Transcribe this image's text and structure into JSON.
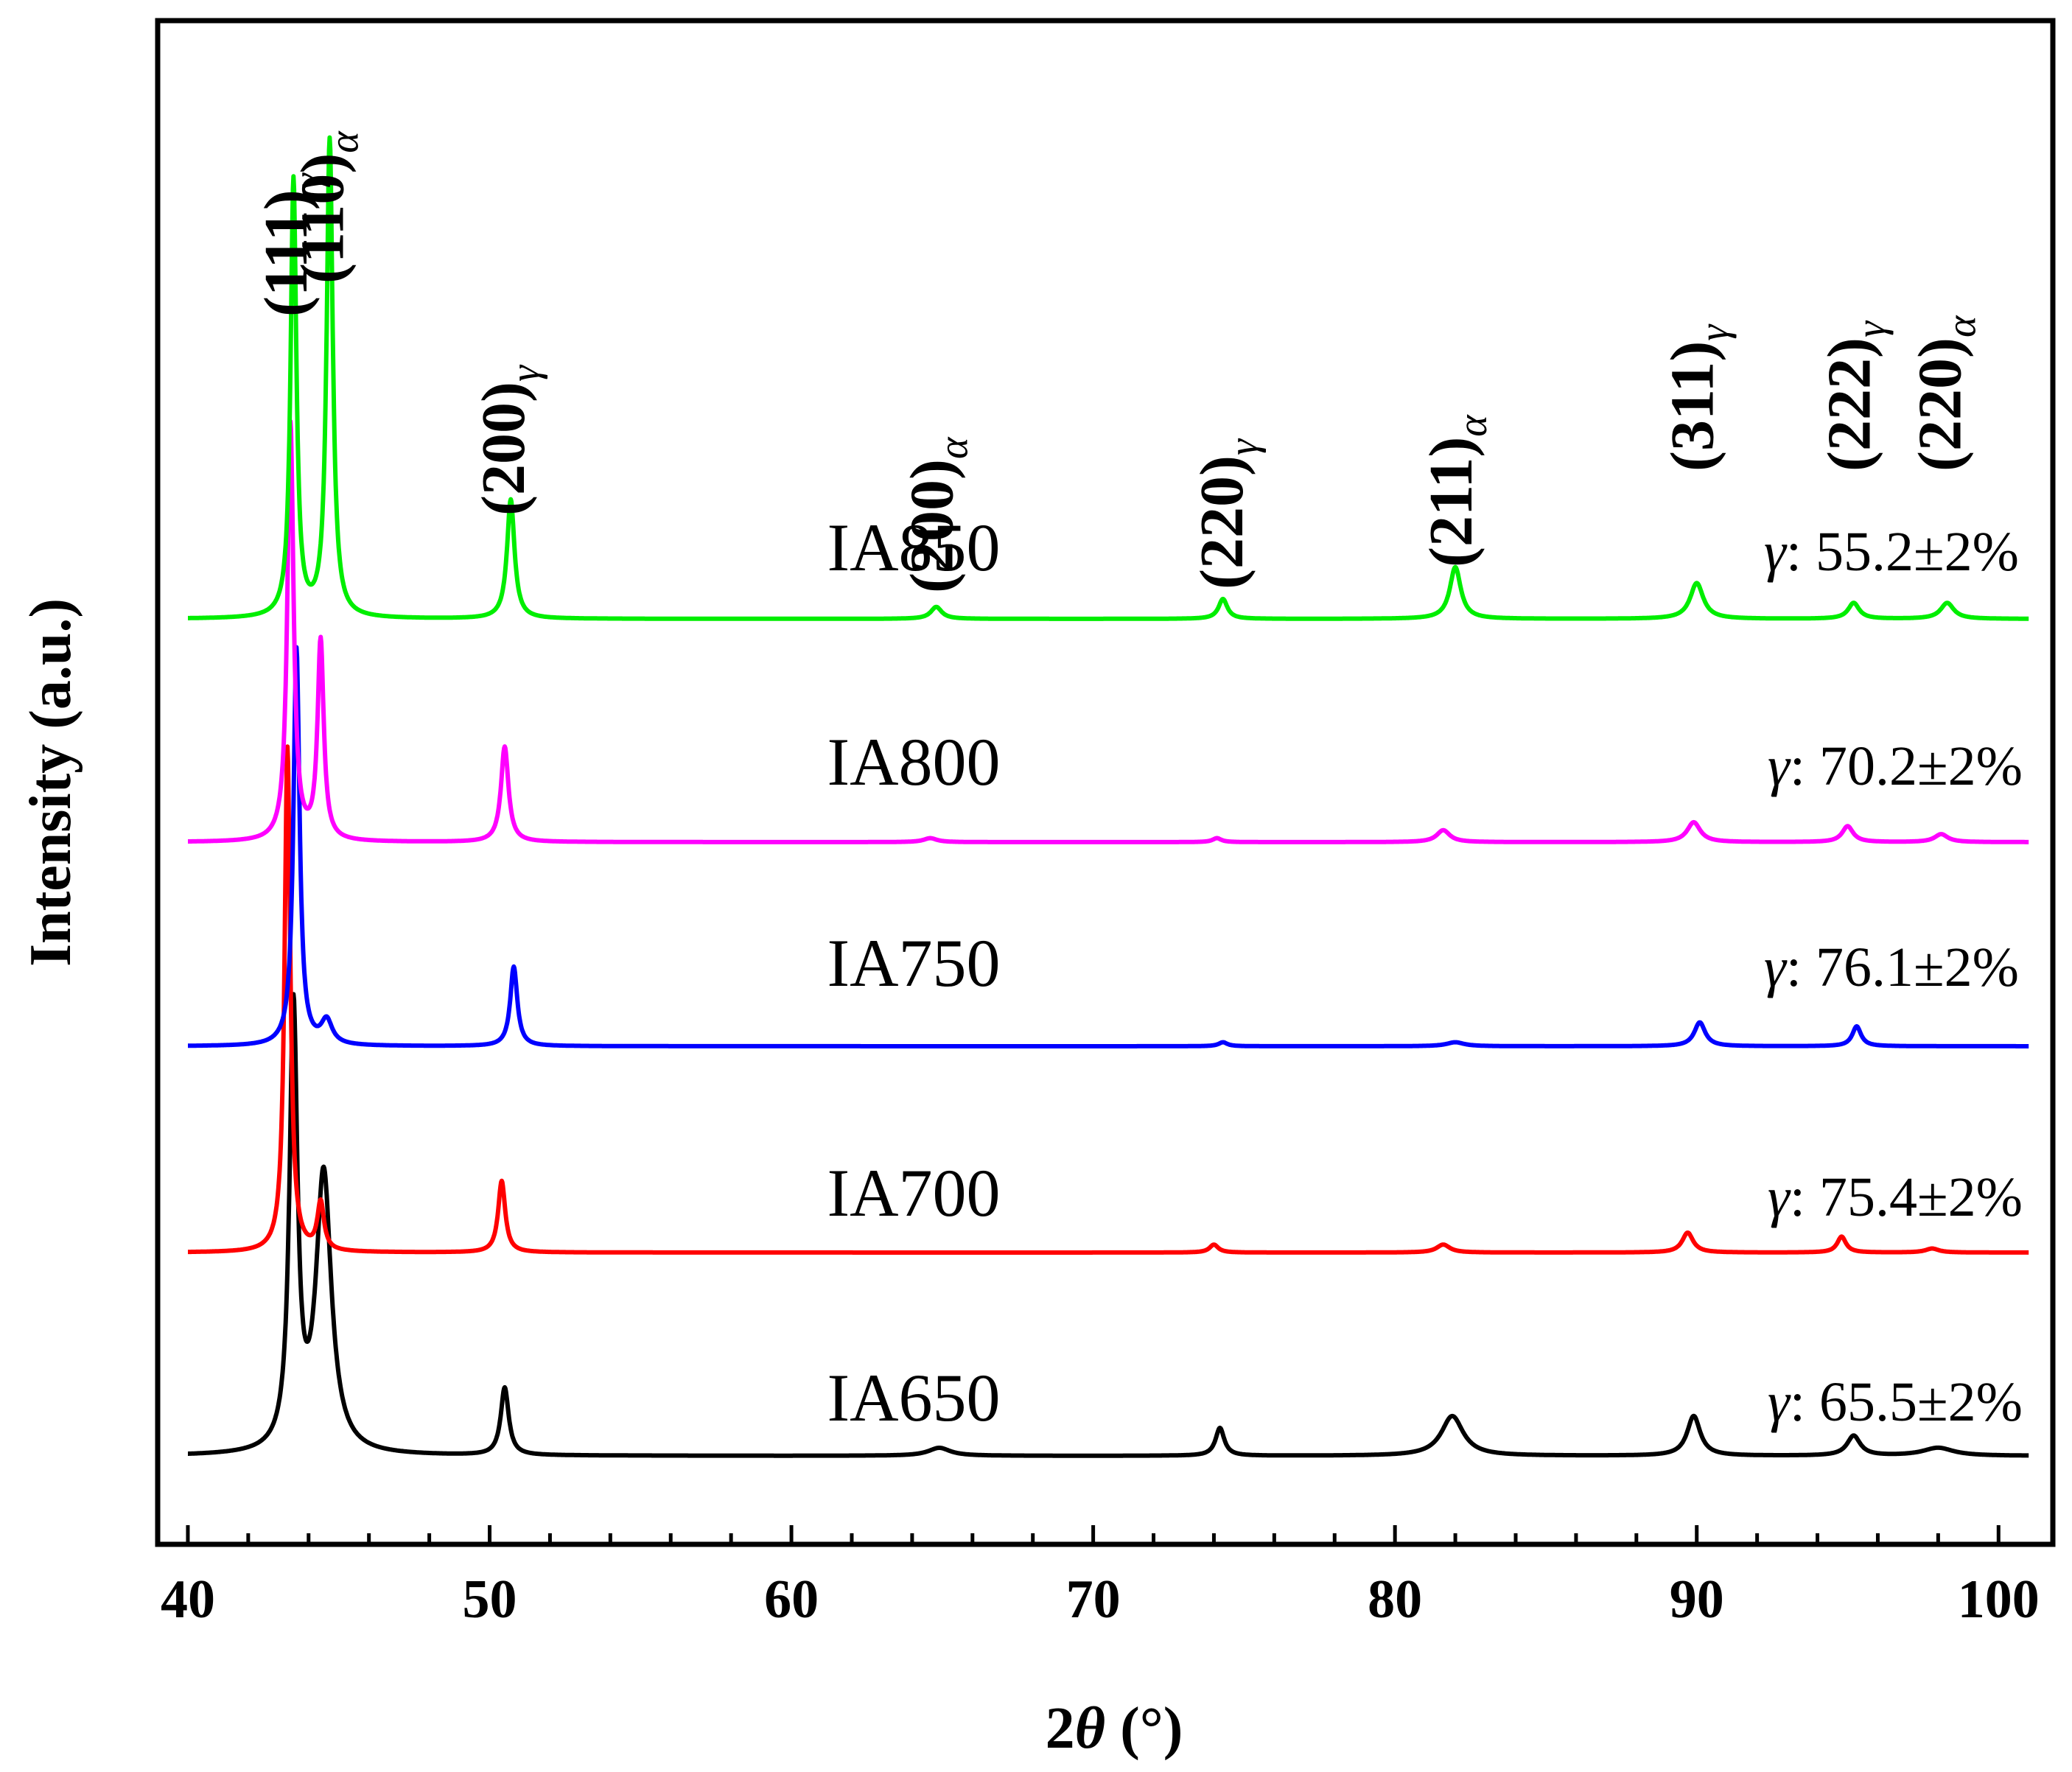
{
  "chart_data": {
    "type": "line",
    "title": "",
    "xlabel": "2θ (°)",
    "xlabel_parts": {
      "pre": "2",
      "theta": "θ",
      "post": " (°)"
    },
    "ylabel": "Intensity (a.u.)",
    "xlim": [
      39,
      101.8
    ],
    "xticks": [
      "40",
      "50",
      "60",
      "70",
      "80",
      "90",
      "100"
    ],
    "y_ticks_shown": false,
    "grid": false,
    "legend": "none",
    "baseline_offset_units": [
      0,
      1.0,
      2.0,
      3.0,
      4.0
    ],
    "peak_labels": [
      {
        "hkl": "(111)",
        "phase": "γ",
        "x": 43.4
      },
      {
        "hkl": "(110)",
        "phase": "α",
        "x": 44.6
      },
      {
        "hkl": "(200)",
        "phase": "γ",
        "x": 50.6
      },
      {
        "hkl": "(200)",
        "phase": "α",
        "x": 64.8
      },
      {
        "hkl": "(220)",
        "phase": "γ",
        "x": 74.4
      },
      {
        "hkl": "(211)",
        "phase": "α",
        "x": 82.0
      },
      {
        "hkl": "(311)",
        "phase": "γ",
        "x": 90.0
      },
      {
        "hkl": "(222)",
        "phase": "γ",
        "x": 95.2
      },
      {
        "hkl": "(220)",
        "phase": "α",
        "x": 98.2
      }
    ],
    "series": [
      {
        "name": "IA650",
        "color": "#000000",
        "x_range": [
          40,
          101
        ],
        "offset": 0,
        "gamma_fraction": "γ: 65.5±2%",
        "peaks": [
          {
            "x": 43.5,
            "height": 1.1,
            "width": 0.18
          },
          {
            "x": 44.5,
            "height": 0.7,
            "width": 0.35
          },
          {
            "x": 50.5,
            "height": 0.17,
            "width": 0.18
          },
          {
            "x": 64.9,
            "height": 0.02,
            "width": 0.5
          },
          {
            "x": 74.2,
            "height": 0.07,
            "width": 0.2
          },
          {
            "x": 81.9,
            "height": 0.1,
            "width": 0.5
          },
          {
            "x": 89.9,
            "height": 0.1,
            "width": 0.3
          },
          {
            "x": 95.2,
            "height": 0.05,
            "width": 0.3
          },
          {
            "x": 98.0,
            "height": 0.02,
            "width": 0.7
          }
        ]
      },
      {
        "name": "IA700",
        "color": "#ff0000",
        "x_range": [
          40,
          101
        ],
        "offset": 1.0,
        "gamma_fraction": "γ: 75.4±2%",
        "peaks": [
          {
            "x": 43.3,
            "height": 1.27,
            "width": 0.13
          },
          {
            "x": 44.4,
            "height": 0.12,
            "width": 0.15
          },
          {
            "x": 50.4,
            "height": 0.18,
            "width": 0.16
          },
          {
            "x": 74.0,
            "height": 0.02,
            "width": 0.2
          },
          {
            "x": 81.6,
            "height": 0.02,
            "width": 0.3
          },
          {
            "x": 89.7,
            "height": 0.05,
            "width": 0.25
          },
          {
            "x": 94.8,
            "height": 0.04,
            "width": 0.2
          },
          {
            "x": 97.8,
            "height": 0.01,
            "width": 0.3
          }
        ]
      },
      {
        "name": "IA750",
        "color": "#0000ff",
        "x_range": [
          40,
          101
        ],
        "offset": 2.0,
        "gamma_fraction": "γ: 76.1±2%",
        "peaks": [
          {
            "x": 43.6,
            "height": 1.0,
            "width": 0.14
          },
          {
            "x": 44.6,
            "height": 0.06,
            "width": 0.25
          },
          {
            "x": 50.8,
            "height": 0.2,
            "width": 0.16
          },
          {
            "x": 74.3,
            "height": 0.01,
            "width": 0.2
          },
          {
            "x": 82.0,
            "height": 0.01,
            "width": 0.4
          },
          {
            "x": 90.1,
            "height": 0.06,
            "width": 0.25
          },
          {
            "x": 95.3,
            "height": 0.05,
            "width": 0.2
          }
        ]
      },
      {
        "name": "IA800",
        "color": "#ff00ff",
        "x_range": [
          40,
          101
        ],
        "offset": 3.0,
        "gamma_fraction": "γ: 70.2±2%",
        "peaks": [
          {
            "x": 43.4,
            "height": 1.05,
            "width": 0.14
          },
          {
            "x": 44.4,
            "height": 0.5,
            "width": 0.14
          },
          {
            "x": 50.5,
            "height": 0.24,
            "width": 0.17
          },
          {
            "x": 64.6,
            "height": 0.01,
            "width": 0.3
          },
          {
            "x": 74.1,
            "height": 0.01,
            "width": 0.2
          },
          {
            "x": 81.6,
            "height": 0.03,
            "width": 0.3
          },
          {
            "x": 89.9,
            "height": 0.05,
            "width": 0.3
          },
          {
            "x": 95.0,
            "height": 0.04,
            "width": 0.25
          },
          {
            "x": 98.1,
            "height": 0.02,
            "width": 0.3
          }
        ]
      },
      {
        "name": "IA850",
        "color": "#00ee00",
        "x_range": [
          40,
          101
        ],
        "offset": 4.0,
        "gamma_fraction": "γ: 55.2±2%",
        "peaks": [
          {
            "x": 43.5,
            "height": 1.1,
            "width": 0.13
          },
          {
            "x": 44.7,
            "height": 1.2,
            "width": 0.14
          },
          {
            "x": 50.7,
            "height": 0.3,
            "width": 0.17
          },
          {
            "x": 64.8,
            "height": 0.03,
            "width": 0.25
          },
          {
            "x": 74.3,
            "height": 0.05,
            "width": 0.2
          },
          {
            "x": 82.0,
            "height": 0.13,
            "width": 0.25
          },
          {
            "x": 90.0,
            "height": 0.09,
            "width": 0.3
          },
          {
            "x": 95.2,
            "height": 0.04,
            "width": 0.25
          },
          {
            "x": 98.3,
            "height": 0.04,
            "width": 0.3
          }
        ]
      }
    ]
  }
}
